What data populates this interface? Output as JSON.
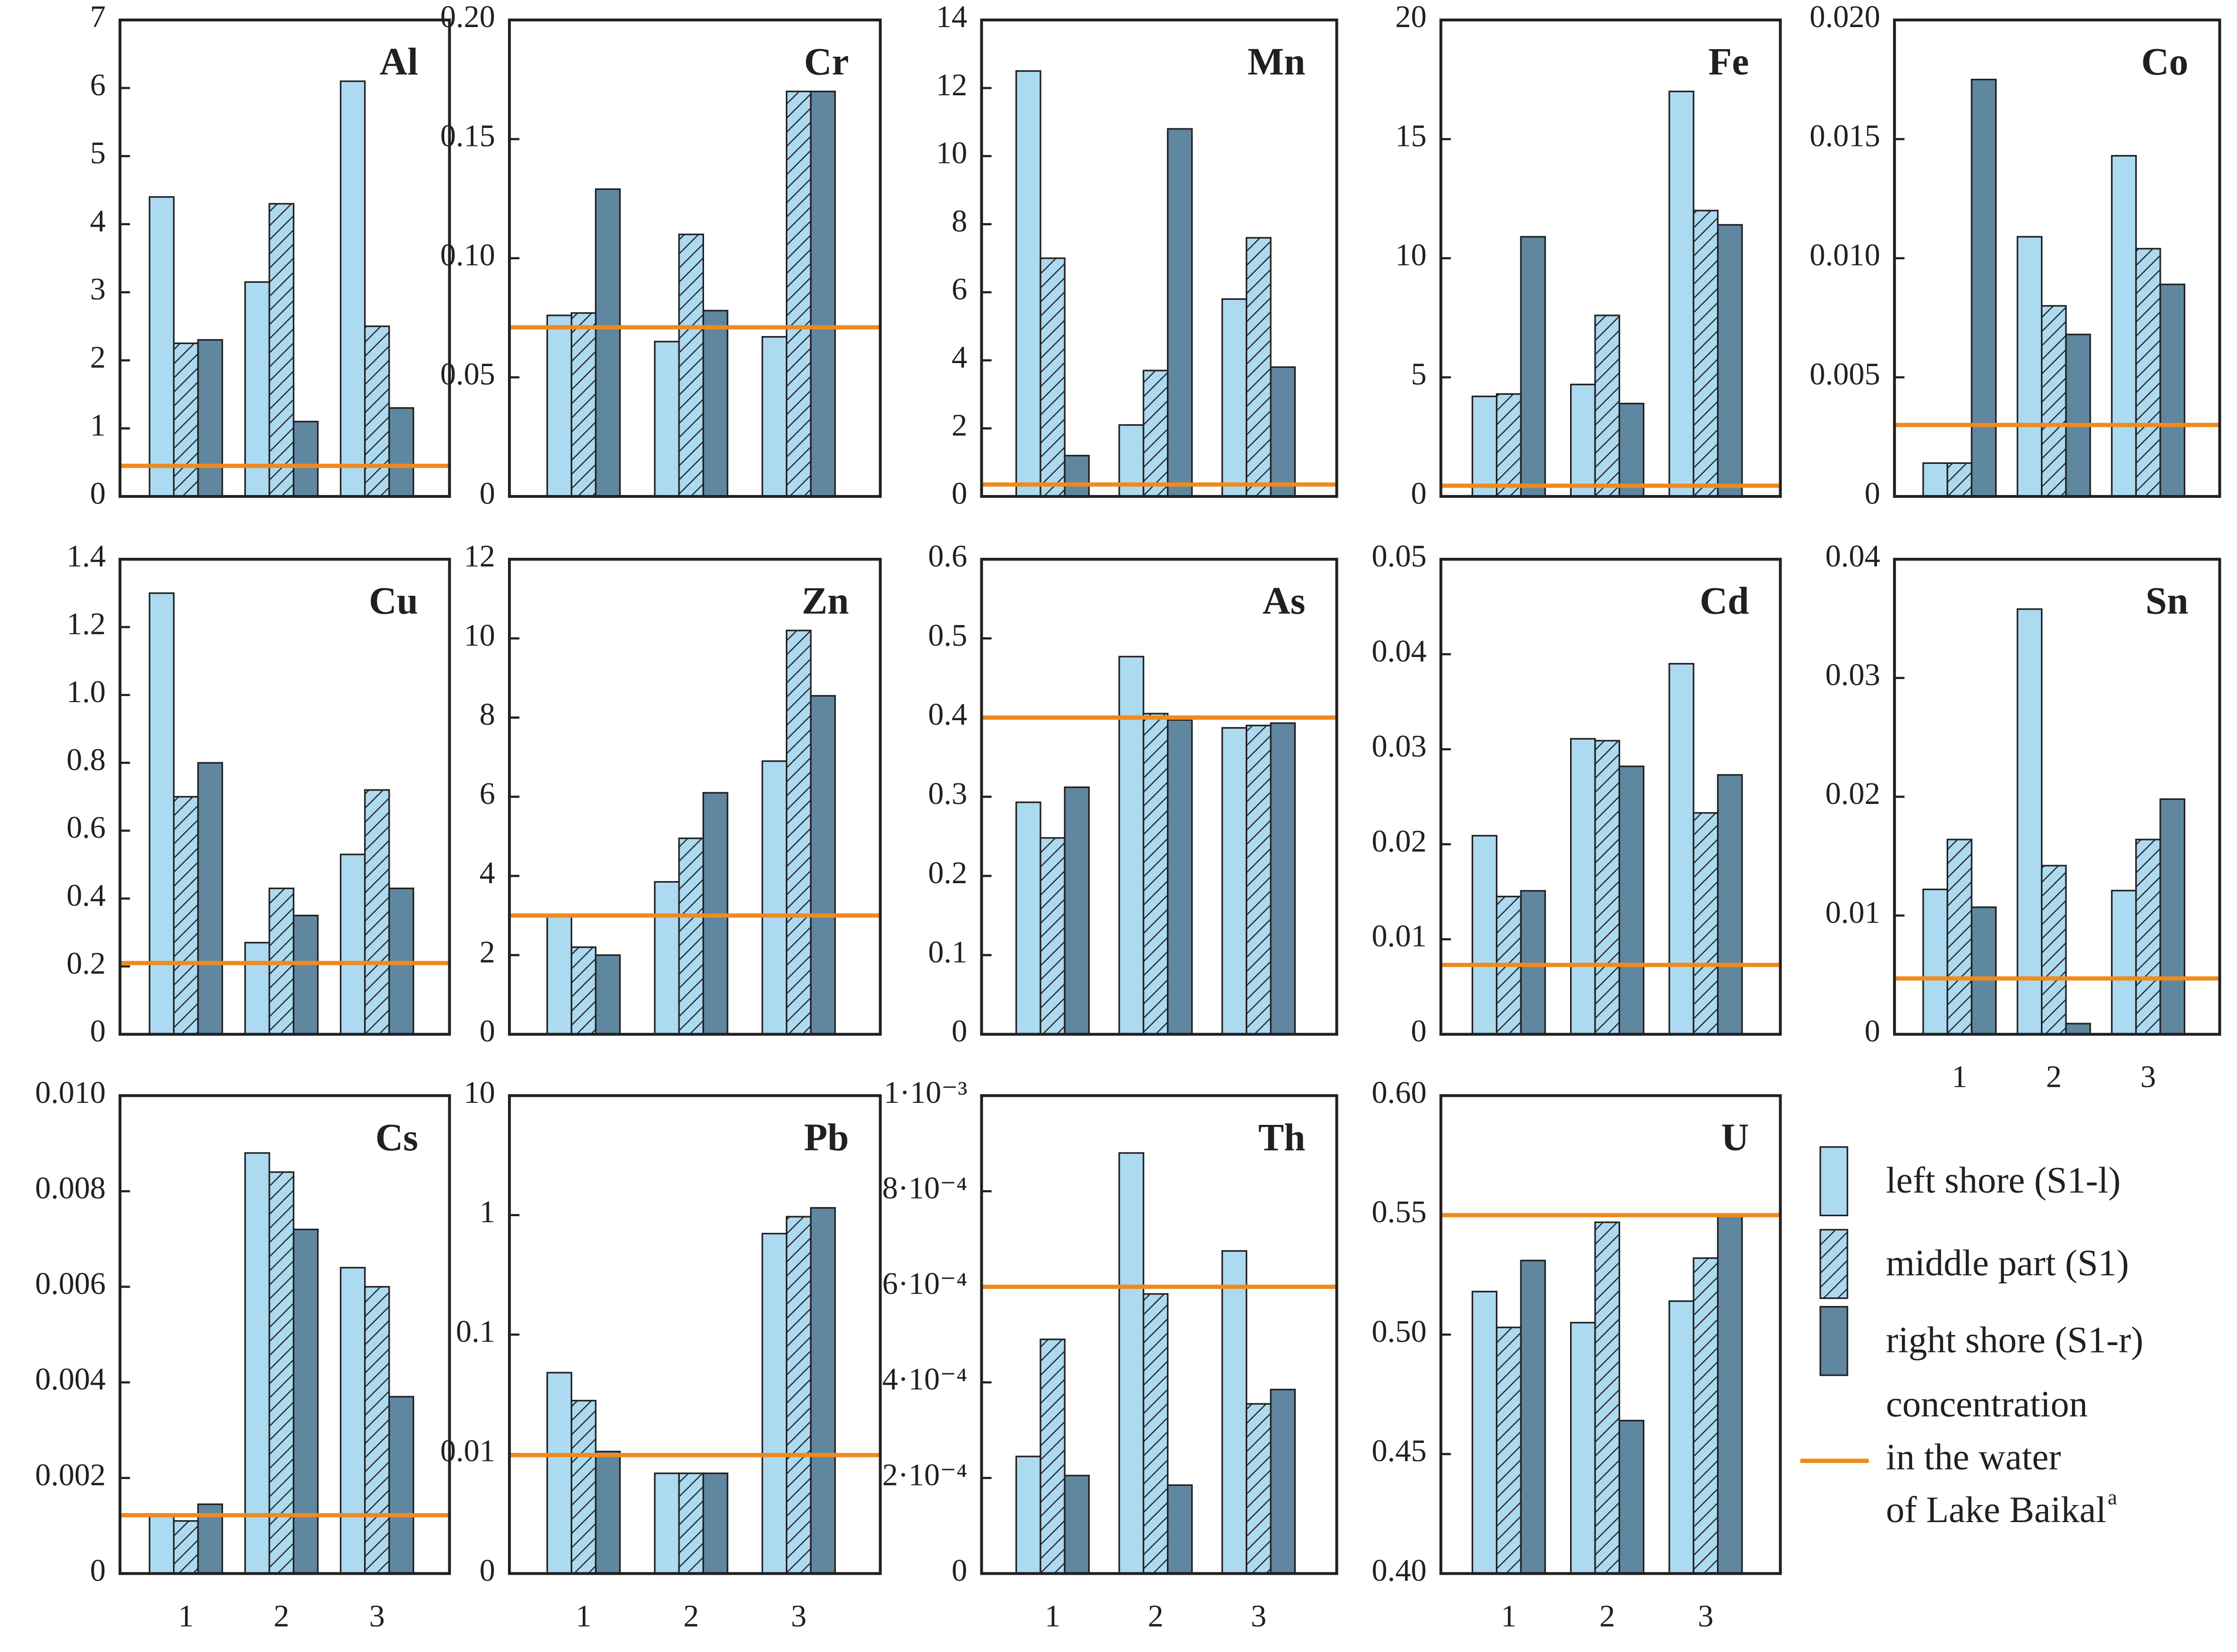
{
  "legend": {
    "series": [
      {
        "name": "left shore (S1-l)",
        "color": "#acdaf0",
        "hatch": false
      },
      {
        "name": "middle part (S1)",
        "color": "#acdaf0",
        "hatch": true
      },
      {
        "name": "right shore (S1-r)",
        "color": "#5f87a0",
        "hatch": false
      }
    ],
    "line_color": "#ef8a1e",
    "line_label": [
      "concentration",
      "in the water",
      "of Lake Baikal"
    ],
    "footnote_mark": "a"
  },
  "chart_data": [
    {
      "type": "bar",
      "title": "Al",
      "ylim": [
        0,
        7
      ],
      "yticks": [
        0,
        1,
        2,
        3,
        4,
        5,
        6,
        7
      ],
      "reference": 0.45,
      "series": [
        {
          "values": [
            4.4,
            3.15,
            6.1
          ]
        },
        {
          "values": [
            2.25,
            4.3,
            2.5
          ]
        },
        {
          "values": [
            2.3,
            1.1,
            1.3
          ]
        }
      ]
    },
    {
      "type": "bar",
      "title": "Cr",
      "ylim": [
        0,
        0.2
      ],
      "yticks": [
        0,
        0.05,
        {
          "value": 0.1,
          "label": "0.10"
        },
        0.15,
        {
          "value": 0.2,
          "label": "0.20"
        }
      ],
      "reference": 0.071,
      "series": [
        {
          "values": [
            0.076,
            0.065,
            0.067
          ]
        },
        {
          "values": [
            0.077,
            0.11,
            0.17
          ]
        },
        {
          "values": [
            0.129,
            0.078,
            0.17
          ]
        }
      ]
    },
    {
      "type": "bar",
      "title": "Mn",
      "ylim": [
        0,
        14
      ],
      "yticks": [
        0,
        2,
        4,
        6,
        8,
        10,
        12,
        14
      ],
      "reference": 0.35,
      "series": [
        {
          "values": [
            12.5,
            2.1,
            5.8
          ]
        },
        {
          "values": [
            7.0,
            3.7,
            7.6
          ]
        },
        {
          "values": [
            1.2,
            10.8,
            3.8
          ]
        }
      ]
    },
    {
      "type": "bar",
      "title": "Fe",
      "ylim": [
        0,
        20
      ],
      "yticks": [
        0,
        5,
        10,
        15,
        20
      ],
      "reference": 0.45,
      "series": [
        {
          "values": [
            4.2,
            4.7,
            17.0
          ]
        },
        {
          "values": [
            4.3,
            7.6,
            12.0
          ]
        },
        {
          "values": [
            10.9,
            3.9,
            11.4
          ]
        }
      ]
    },
    {
      "type": "bar",
      "title": "Co",
      "ylim": [
        0,
        0.02
      ],
      "yticks": [
        0,
        0.005,
        {
          "value": 0.01,
          "label": "0.010"
        },
        0.015,
        {
          "value": 0.02,
          "label": "0.020"
        }
      ],
      "reference": 0.003,
      "series": [
        {
          "values": [
            0.0014,
            0.0109,
            0.0143
          ]
        },
        {
          "values": [
            0.0014,
            0.008,
            0.0104
          ]
        },
        {
          "values": [
            0.0175,
            0.0068,
            0.0089
          ]
        }
      ]
    },
    {
      "type": "bar",
      "title": "Cu",
      "ylim": [
        0,
        1.4
      ],
      "yticks": [
        0,
        0.2,
        0.4,
        0.6,
        0.8,
        {
          "value": 1,
          "label": "1.0"
        },
        1.2,
        1.4
      ],
      "reference": 0.21,
      "series": [
        {
          "values": [
            1.3,
            0.27,
            0.53
          ]
        },
        {
          "values": [
            0.7,
            0.43,
            0.72
          ]
        },
        {
          "values": [
            0.8,
            0.35,
            0.43
          ]
        }
      ]
    },
    {
      "type": "bar",
      "title": "Zn",
      "ylim": [
        0,
        12
      ],
      "yticks": [
        0,
        2,
        4,
        6,
        8,
        10,
        12
      ],
      "reference": 3.0,
      "series": [
        {
          "values": [
            3.0,
            3.85,
            6.9
          ]
        },
        {
          "values": [
            2.2,
            4.95,
            10.2
          ]
        },
        {
          "values": [
            2.0,
            6.1,
            8.55
          ]
        }
      ]
    },
    {
      "type": "bar",
      "title": "As",
      "ylim": [
        0,
        0.6
      ],
      "yticks": [
        0,
        0.1,
        0.2,
        0.3,
        0.4,
        0.5,
        0.6
      ],
      "reference": 0.4,
      "series": [
        {
          "values": [
            0.293,
            0.477,
            0.387
          ]
        },
        {
          "values": [
            0.248,
            0.405,
            0.39
          ]
        },
        {
          "values": [
            0.312,
            0.397,
            0.393
          ]
        }
      ]
    },
    {
      "type": "bar",
      "title": "Cd",
      "ylim": [
        0,
        0.05
      ],
      "yticks": [
        0,
        0.01,
        0.02,
        0.03,
        0.04,
        0.05
      ],
      "reference": 0.0073,
      "series": [
        {
          "values": [
            0.0209,
            0.0311,
            0.039
          ]
        },
        {
          "values": [
            0.0145,
            0.0309,
            0.0233
          ]
        },
        {
          "values": [
            0.0151,
            0.0282,
            0.0273
          ]
        }
      ]
    },
    {
      "type": "bar",
      "title": "Sn",
      "categories": [
        "1",
        "2",
        "3"
      ],
      "ylim": [
        0,
        0.04
      ],
      "yticks": [
        0,
        0.01,
        0.02,
        0.03,
        0.04
      ],
      "reference": 0.0047,
      "series": [
        {
          "values": [
            0.0122,
            0.0358,
            0.0121
          ]
        },
        {
          "values": [
            0.0164,
            0.0142,
            0.0164
          ]
        },
        {
          "values": [
            0.0107,
            0.0009,
            0.0198
          ]
        }
      ]
    },
    {
      "type": "bar",
      "title": "Cs",
      "categories": [
        "1",
        "2",
        "3"
      ],
      "ylim": [
        0,
        0.01
      ],
      "yticks": [
        0,
        0.002,
        0.004,
        0.006,
        0.008,
        {
          "value": 0.01,
          "label": "0.010"
        }
      ],
      "reference": 0.00122,
      "series": [
        {
          "values": [
            0.0012,
            0.0088,
            0.0064
          ]
        },
        {
          "values": [
            0.0011,
            0.0084,
            0.006
          ]
        },
        {
          "values": [
            0.00145,
            0.0072,
            0.0037
          ]
        }
      ]
    },
    {
      "type": "bar",
      "title": "Pb",
      "categories": [
        "1",
        "2",
        "3"
      ],
      "log": true,
      "ylim": [
        0.001,
        10
      ],
      "yticks": [
        {
          "value": 0.001,
          "label": "0"
        },
        0.01,
        0.1,
        1,
        10
      ],
      "reference": 0.0098,
      "series": [
        {
          "values": [
            0.048,
            0.0069,
            0.7
          ]
        },
        {
          "values": [
            0.028,
            0.0069,
            0.97
          ]
        },
        {
          "values": [
            0.0105,
            0.0069,
            1.15
          ]
        }
      ]
    },
    {
      "type": "bar",
      "title": "Th",
      "categories": [
        "1",
        "2",
        "3"
      ],
      "ylim": [
        0,
        0.001
      ],
      "yticks": [
        0,
        {
          "value": 0.0002,
          "label": "2·10⁻⁴"
        },
        {
          "value": 0.0004,
          "label": "4·10⁻⁴"
        },
        {
          "value": 0.0006,
          "label": "6·10⁻⁴"
        },
        {
          "value": 0.0008,
          "label": "8·10⁻⁴"
        },
        {
          "value": 0.001,
          "label": "1·10⁻³"
        }
      ],
      "reference": 0.0006,
      "series": [
        {
          "values": [
            0.000245,
            0.00088,
            0.000675
          ]
        },
        {
          "values": [
            0.00049,
            0.000585,
            0.000355
          ]
        },
        {
          "values": [
            0.000205,
            0.000185,
            0.000385
          ]
        }
      ]
    },
    {
      "type": "bar",
      "title": "U",
      "categories": [
        "1",
        "2",
        "3"
      ],
      "ylim": [
        0.4,
        0.6
      ],
      "yticks": [
        {
          "value": 0.4,
          "label": "0.40"
        },
        0.45,
        {
          "value": 0.5,
          "label": "0.50"
        },
        0.55,
        {
          "value": 0.6,
          "label": "0.60"
        }
      ],
      "reference": 0.55,
      "series": [
        {
          "values": [
            0.518,
            0.505,
            0.514
          ]
        },
        {
          "values": [
            0.503,
            0.547,
            0.532
          ]
        },
        {
          "values": [
            0.531,
            0.464,
            0.55
          ]
        }
      ]
    }
  ]
}
